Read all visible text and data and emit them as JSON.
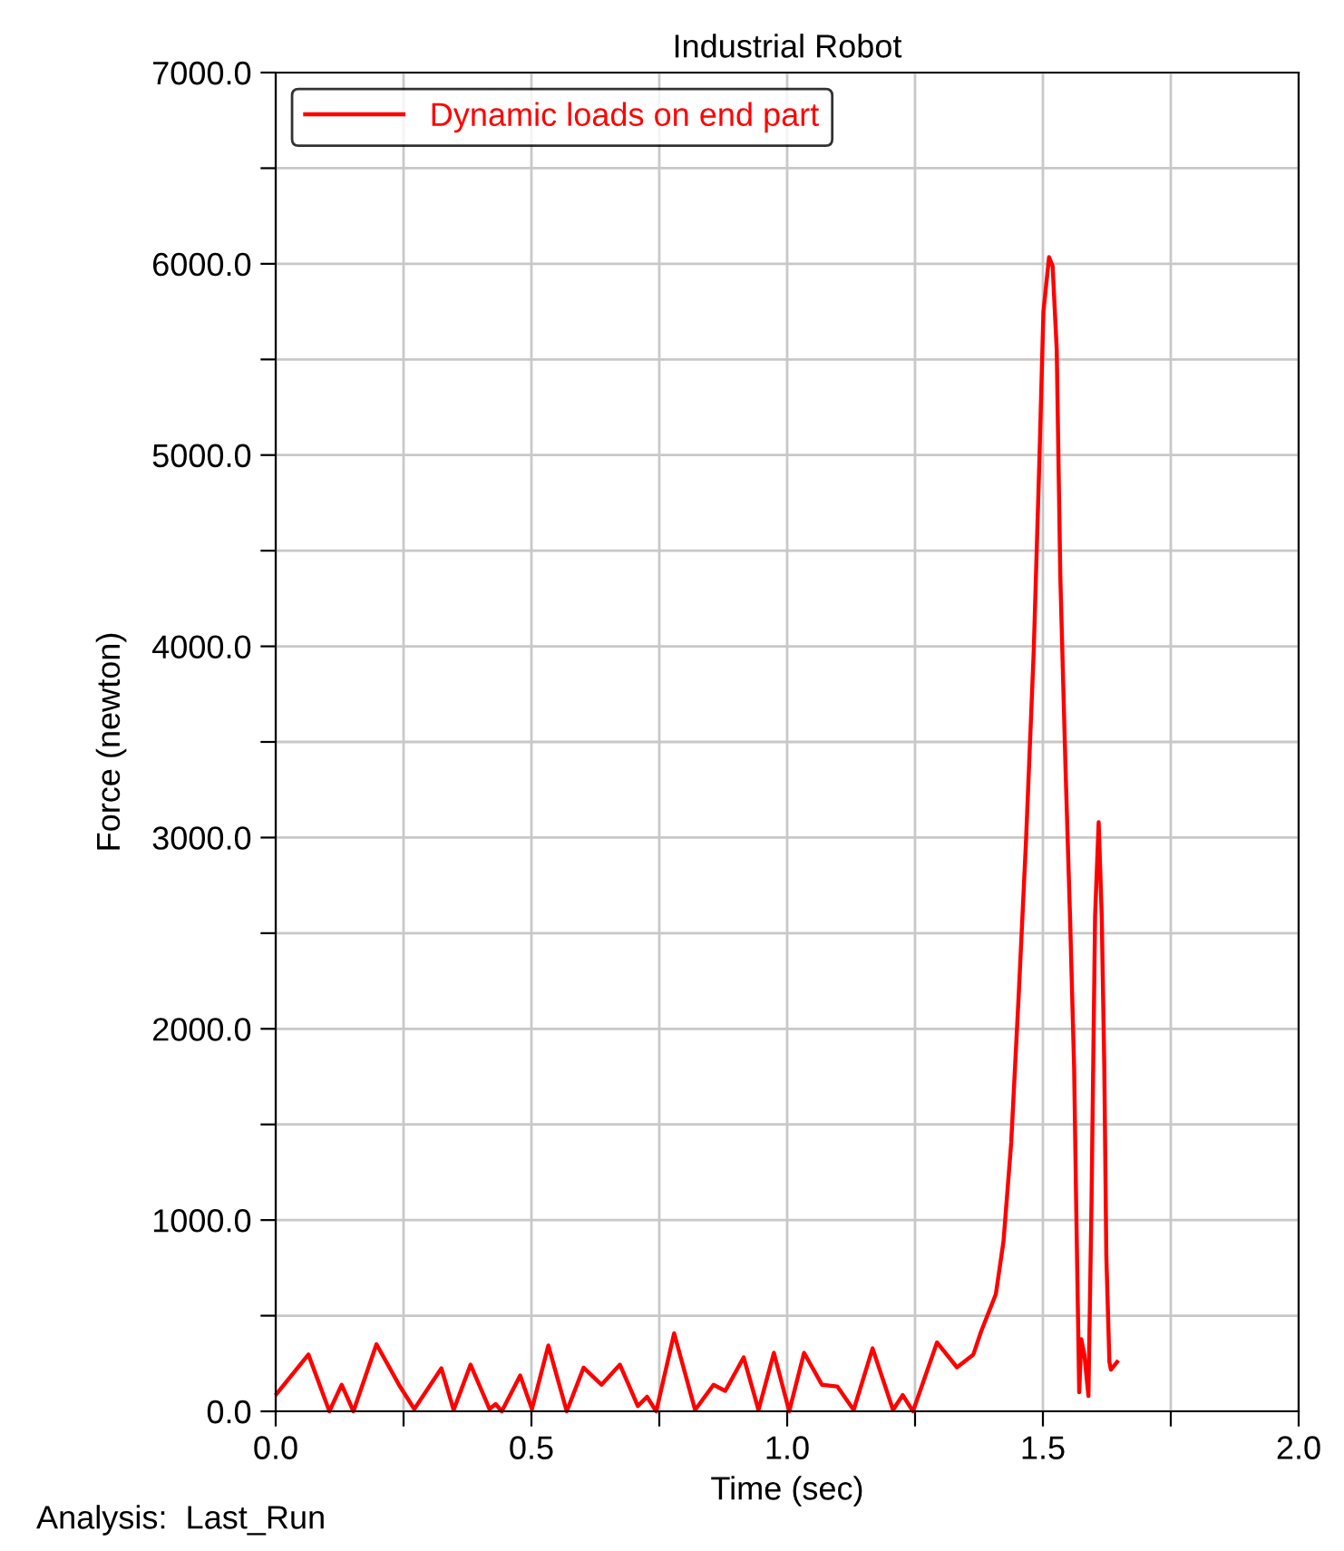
{
  "chart_data": {
    "type": "line",
    "title": "Industrial Robot",
    "xlabel": "Time (sec)",
    "ylabel": "Force (newton)",
    "annotations": [
      "Analysis:  Last_Run"
    ],
    "xlim": [
      0,
      2.0
    ],
    "ylim": [
      0,
      7000
    ],
    "xticks": [
      {
        "value": 0,
        "label": "0.0"
      },
      {
        "value": 0.25,
        "label": null
      },
      {
        "value": 0.5,
        "label": "0.5"
      },
      {
        "value": 0.75,
        "label": null
      },
      {
        "value": 1.0,
        "label": "1.0"
      },
      {
        "value": 1.25,
        "label": null
      },
      {
        "value": 1.5,
        "label": "1.5"
      },
      {
        "value": 1.75,
        "label": null
      },
      {
        "value": 2.0,
        "label": "2.0"
      }
    ],
    "yticks": [
      {
        "value": 0,
        "label": "0.0"
      },
      {
        "value": 500,
        "label": null
      },
      {
        "value": 1000,
        "label": "1000.0"
      },
      {
        "value": 1500,
        "label": null
      },
      {
        "value": 2000,
        "label": "2000.0"
      },
      {
        "value": 2500,
        "label": null
      },
      {
        "value": 3000,
        "label": "3000.0"
      },
      {
        "value": 3500,
        "label": null
      },
      {
        "value": 4000,
        "label": "4000.0"
      },
      {
        "value": 4500,
        "label": null
      },
      {
        "value": 5000,
        "label": "5000.0"
      },
      {
        "value": 5500,
        "label": null
      },
      {
        "value": 6000,
        "label": "6000.0"
      },
      {
        "value": 6500,
        "label": null
      },
      {
        "value": 7000,
        "label": "7000.0"
      }
    ],
    "grid": true,
    "legend": "top left",
    "line_style": "solid",
    "marker": "none",
    "series": [
      {
        "name": "Dynamic loads on end part",
        "color": "#ff0000",
        "x": [
          0.002,
          0.064,
          0.105,
          0.129,
          0.152,
          0.197,
          0.241,
          0.271,
          0.324,
          0.348,
          0.381,
          0.418,
          0.43,
          0.442,
          0.478,
          0.501,
          0.533,
          0.569,
          0.602,
          0.637,
          0.673,
          0.708,
          0.726,
          0.744,
          0.779,
          0.82,
          0.856,
          0.879,
          0.915,
          0.944,
          0.974,
          1.004,
          1.033,
          1.068,
          1.098,
          1.13,
          1.167,
          1.207,
          1.226,
          1.246,
          1.293,
          1.332,
          1.364,
          1.379,
          1.408,
          1.423,
          1.438,
          1.453,
          1.467,
          1.482,
          1.493,
          1.501,
          1.512,
          1.519,
          1.527,
          1.534,
          1.544,
          1.553,
          1.561,
          1.565,
          1.571,
          1.575,
          1.581,
          1.589,
          1.595,
          1.602,
          1.609,
          1.615,
          1.62,
          1.624,
          1.63,
          1.633,
          1.645
        ],
        "values": [
          92,
          297,
          0,
          139,
          0,
          351,
          139,
          12,
          225,
          7,
          244,
          12,
          38,
          0,
          187,
          12,
          344,
          0,
          228,
          139,
          244,
          28,
          76,
          0,
          408,
          7,
          139,
          107,
          282,
          7,
          306,
          0,
          306,
          139,
          130,
          7,
          329,
          7,
          85,
          0,
          360,
          230,
          297,
          416,
          613,
          890,
          1404,
          2194,
          2985,
          3972,
          4961,
          5751,
          6035,
          5988,
          5553,
          4368,
          3380,
          2589,
          1799,
          1088,
          100,
          377,
          297,
          80,
          1088,
          2589,
          3080,
          2589,
          1799,
          811,
          258,
          218,
          258
        ]
      }
    ]
  }
}
